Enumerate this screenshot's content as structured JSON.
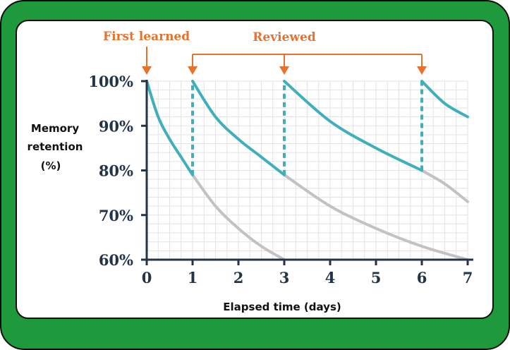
{
  "chart_data": {
    "type": "line",
    "ylabel_lines": [
      "Memory",
      "retention",
      "(%)"
    ],
    "xlabel": "Elapsed time (days)",
    "x_ticks": [
      0,
      1,
      2,
      3,
      4,
      5,
      6,
      7
    ],
    "y_ticks": [
      "100%",
      "90%",
      "80%",
      "70%",
      "60%"
    ],
    "xlim": [
      0,
      7
    ],
    "ylim": [
      60,
      100
    ],
    "grid": true,
    "annotations": {
      "first_learned": {
        "label": "First learned",
        "x": 0
      },
      "reviewed": {
        "label": "Reviewed",
        "x": [
          1,
          3,
          6
        ]
      }
    },
    "series": [
      {
        "role": "retention-with-reviews",
        "color": "#3fb0bb",
        "segments": [
          {
            "x": [
              0,
              0.25,
              0.5,
              0.75,
              1
            ],
            "y": [
              100,
              92,
              87,
              83,
              79
            ]
          },
          {
            "x": [
              1,
              1.5,
              2,
              2.5,
              3
            ],
            "y": [
              100,
              92,
              87,
              83,
              79
            ]
          },
          {
            "x": [
              3,
              4,
              5,
              6
            ],
            "y": [
              100,
              91,
              85,
              80
            ]
          },
          {
            "x": [
              6,
              6.5,
              7
            ],
            "y": [
              100,
              95,
              92
            ]
          }
        ],
        "review_jumps": [
          {
            "x": 1,
            "from": 79,
            "to": 100
          },
          {
            "x": 3,
            "from": 79,
            "to": 100
          },
          {
            "x": 6,
            "from": 80,
            "to": 100
          }
        ]
      },
      {
        "role": "forgetting-without-review",
        "color": "#c2c2c2",
        "segments": [
          {
            "x": [
              1,
              1.5,
              2,
              2.5,
              3
            ],
            "y": [
              79,
              72,
              67,
              63,
              60
            ]
          },
          {
            "x": [
              3,
              4,
              5,
              6,
              7
            ],
            "y": [
              79,
              72,
              67,
              63,
              60
            ]
          },
          {
            "x": [
              6,
              6.5,
              7
            ],
            "y": [
              80,
              77,
              73
            ]
          }
        ]
      }
    ]
  },
  "colors": {
    "frame": "#1e9a3c",
    "teal": "#3fb0bb",
    "gray": "#c2c2c2",
    "orange": "#e9722b",
    "axis": "#233447",
    "grid": "#e3e3e3"
  }
}
